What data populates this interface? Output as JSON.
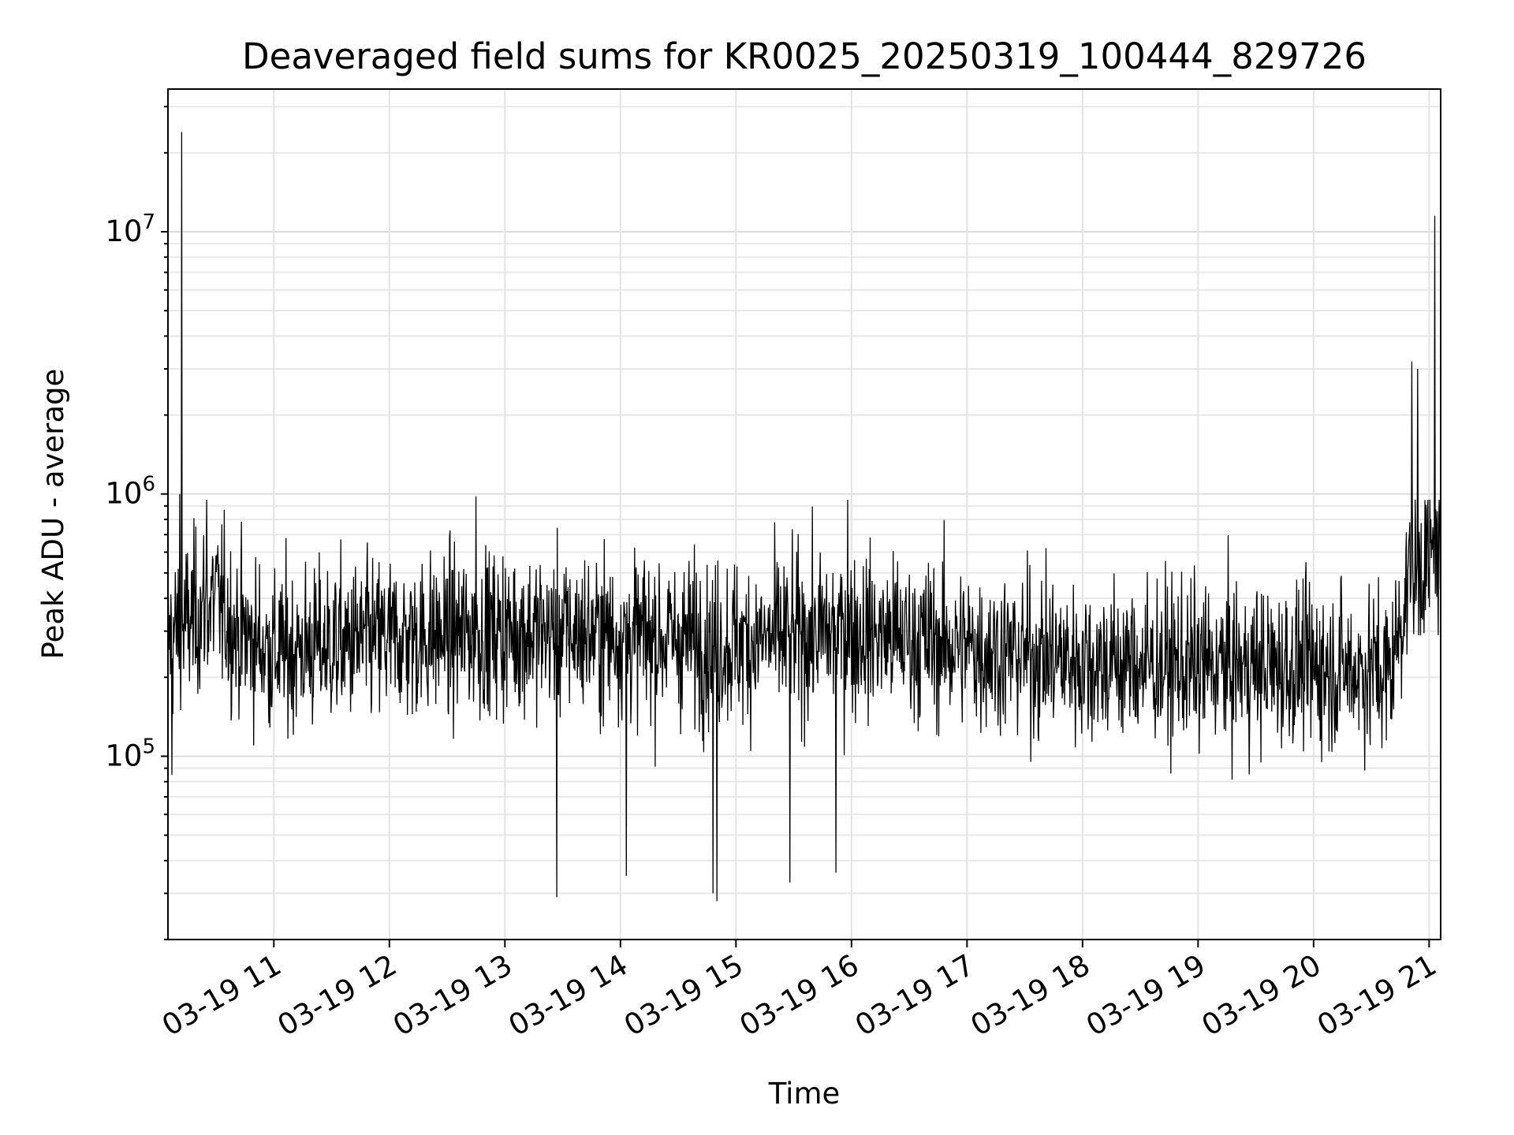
{
  "chart_data": {
    "type": "line",
    "title": "Deaveraged field sums for KR0025_20250319_100444_829726",
    "xlabel": "Time",
    "ylabel": "Peak ADU - average",
    "yscale": "log",
    "xlim": [
      "2025-03-19 10:05",
      "2025-03-19 21:06"
    ],
    "ylim": [
      20000,
      35000000
    ],
    "grid": true,
    "grid_which": "both",
    "line_color": "#000000",
    "x_ticks": [
      "03-19 11",
      "03-19 12",
      "03-19 13",
      "03-19 14",
      "03-19 15",
      "03-19 16",
      "03-19 17",
      "03-19 18",
      "03-19 19",
      "03-19 20",
      "03-19 21"
    ],
    "y_ticks": [
      {
        "value": 100000,
        "base": "10",
        "exp": "5"
      },
      {
        "value": 1000000,
        "base": "10",
        "exp": "6"
      },
      {
        "value": 10000000,
        "base": "10",
        "exp": "7"
      }
    ],
    "series": [
      {
        "x_start": "2025-03-19 10:05",
        "x_end": "2025-03-19 21:06",
        "baseline": [
          {
            "x": "2025-03-19 10:05",
            "y": 280000
          },
          {
            "x": "2025-03-19 10:30",
            "y": 400000
          },
          {
            "x": "2025-03-19 10:40",
            "y": 300000
          },
          {
            "x": "2025-03-19 11:00",
            "y": 250000
          },
          {
            "x": "2025-03-19 12:00",
            "y": 280000
          },
          {
            "x": "2025-03-19 13:00",
            "y": 300000
          },
          {
            "x": "2025-03-19 14:00",
            "y": 290000
          },
          {
            "x": "2025-03-19 15:00",
            "y": 270000
          },
          {
            "x": "2025-03-19 16:00",
            "y": 300000
          },
          {
            "x": "2025-03-19 17:00",
            "y": 260000
          },
          {
            "x": "2025-03-19 18:00",
            "y": 230000
          },
          {
            "x": "2025-03-19 19:00",
            "y": 220000
          },
          {
            "x": "2025-03-19 20:00",
            "y": 220000
          },
          {
            "x": "2025-03-19 20:40",
            "y": 210000
          },
          {
            "x": "2025-03-19 20:50",
            "y": 500000
          },
          {
            "x": "2025-03-19 21:06",
            "y": 600000
          }
        ],
        "spikes": [
          {
            "x": "2025-03-19 10:12",
            "y": 24000000
          },
          {
            "x": "2025-03-19 10:11",
            "y": 1000000
          },
          {
            "x": "2025-03-19 10:25",
            "y": 950000
          },
          {
            "x": "2025-03-19 12:45",
            "y": 980000
          },
          {
            "x": "2025-03-19 15:58",
            "y": 950000
          },
          {
            "x": "2025-03-19 20:51",
            "y": 3200000
          },
          {
            "x": "2025-03-19 20:54",
            "y": 3000000
          },
          {
            "x": "2025-03-19 21:03",
            "y": 11500000
          },
          {
            "x": "2025-03-19 10:07",
            "y": 85000
          },
          {
            "x": "2025-03-19 13:27",
            "y": 29000
          },
          {
            "x": "2025-03-19 14:50",
            "y": 28000
          },
          {
            "x": "2025-03-19 14:48",
            "y": 30000
          },
          {
            "x": "2025-03-19 15:28",
            "y": 33000
          },
          {
            "x": "2025-03-19 15:52",
            "y": 36000
          },
          {
            "x": "2025-03-19 14:03",
            "y": 35000
          }
        ]
      }
    ]
  }
}
